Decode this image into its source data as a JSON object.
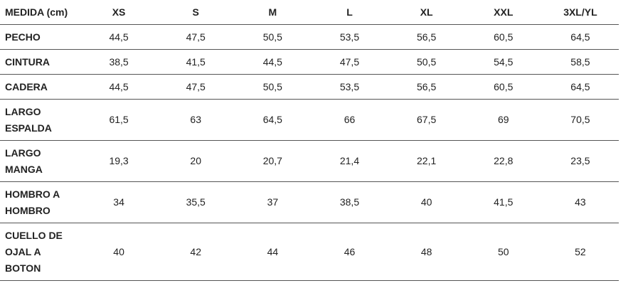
{
  "table": {
    "header": [
      "MEDIDA (cm)",
      "XS",
      "S",
      "M",
      "L",
      "XL",
      "XXL",
      "3XL/YL"
    ],
    "rows": [
      [
        "PECHO",
        "44,5",
        "47,5",
        "50,5",
        "53,5",
        "56,5",
        "60,5",
        "64,5"
      ],
      [
        "CINTURA",
        "38,5",
        "41,5",
        "44,5",
        "47,5",
        "50,5",
        "54,5",
        "58,5"
      ],
      [
        "CADERA",
        "44,5",
        "47,5",
        "50,5",
        "53,5",
        "56,5",
        "60,5",
        "64,5"
      ],
      [
        "LARGO\nESPALDA",
        "61,5",
        "63",
        "64,5",
        "66",
        "67,5",
        "69",
        "70,5"
      ],
      [
        "LARGO\nMANGA",
        "19,3",
        "20",
        "20,7",
        "21,4",
        "22,1",
        "22,8",
        "23,5"
      ],
      [
        "HOMBRO A\nHOMBRO",
        "34",
        "35,5",
        "37",
        "38,5",
        "40",
        "41,5",
        "43"
      ],
      [
        "CUELLO DE\nOJAL A\nBOTON",
        "40",
        "42",
        "44",
        "46",
        "48",
        "50",
        "52"
      ]
    ]
  }
}
